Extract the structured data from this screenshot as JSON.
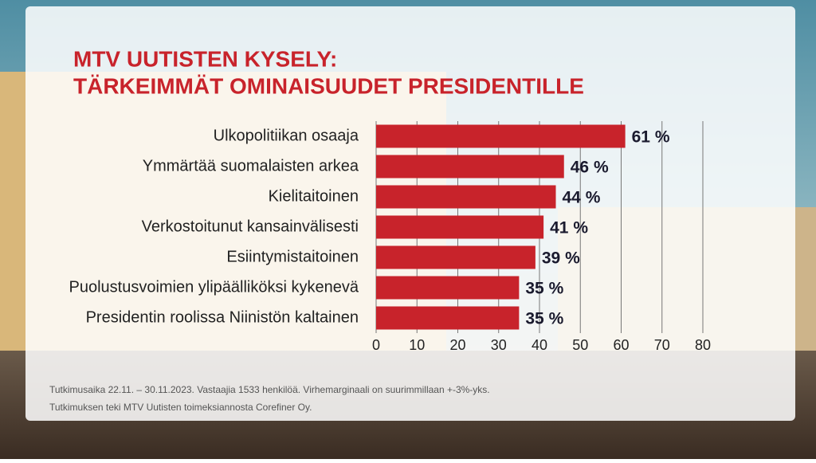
{
  "chart_data": {
    "type": "bar",
    "orientation": "horizontal",
    "title": [
      "MTV UUTISTEN KYSELY:",
      "TÄRKEIMMÄT OMINAISUUDET PRESIDENTILLE"
    ],
    "categories": [
      "Ulkopolitiikan osaaja",
      "Ymmärtää suomalaisten arkea",
      "Kielitaitoinen",
      "Verkostoitunut kansainvälisesti",
      "Esiintymistaitoinen",
      "Puolustusvoimien ylipäälliköksi kykenevä",
      "Presidentin roolissa Niinistön kaltainen"
    ],
    "values": [
      61,
      46,
      44,
      41,
      39,
      35,
      35
    ],
    "value_labels": [
      "61 %",
      "46 %",
      "44 %",
      "41 %",
      "39 %",
      "35 %",
      "35 %"
    ],
    "color": "#c8232b",
    "xlim": [
      0,
      80
    ],
    "xticks": [
      0,
      10,
      20,
      30,
      40,
      50,
      60,
      70,
      80
    ],
    "grid": true,
    "footnotes": [
      "Tutkimusaika 22.11. – 30.11.2023. Vastaajia 1533 henkilöä. Virhemarginaali on suurimmillaan +-3%-yks.",
      "Tutkimuksen teki MTV Uutisten toimeksiannosta Corefiner Oy."
    ]
  }
}
